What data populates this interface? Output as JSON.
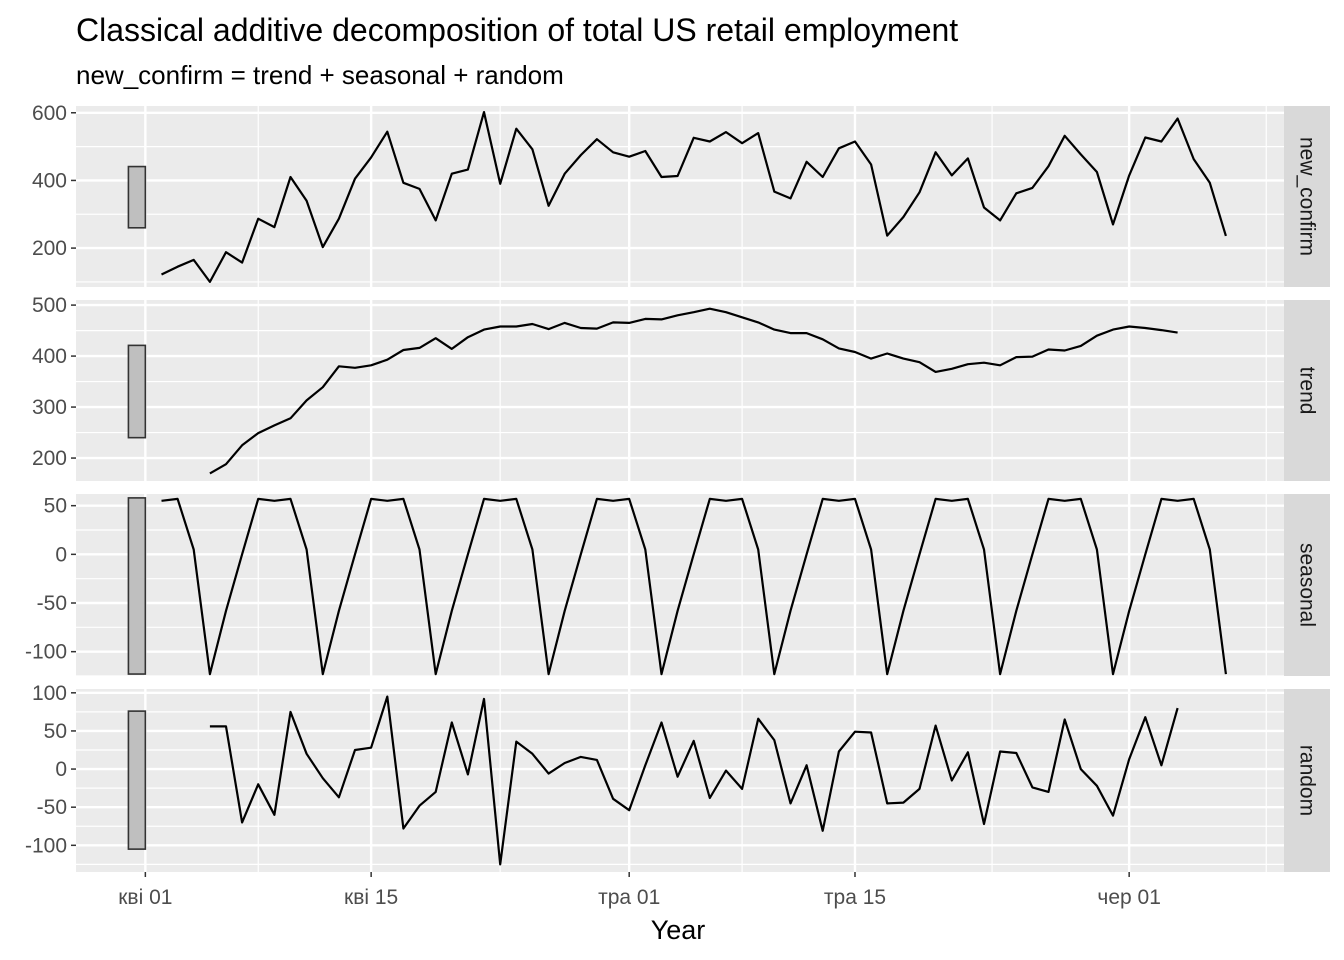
{
  "chart_data": {
    "type": "line",
    "title": "Classical additive decomposition of total US retail employment",
    "subtitle": "new_confirm = trend + seasonal + random",
    "xlabel": "Year",
    "x_ticks": [
      {
        "label": "кві 01",
        "day": 0
      },
      {
        "label": "кві 15",
        "day": 14
      },
      {
        "label": "тра 01",
        "day": 30
      },
      {
        "label": "тра 15",
        "day": 44
      },
      {
        "label": "чер 01",
        "day": 61
      }
    ],
    "x_start_label": "кві 01",
    "x_range": [
      -4.3,
      70.6
    ],
    "panels": [
      {
        "name": "new_confirm",
        "ylim": [
          85,
          620
        ],
        "y_ticks": [
          200,
          400,
          600
        ],
        "scale_bar": [
          260,
          441
        ],
        "values": [
          122,
          145,
          165,
          100,
          188,
          157,
          287,
          262,
          410,
          340,
          203,
          287,
          405,
          468,
          544,
          393,
          375,
          282,
          420,
          432,
          602,
          390,
          553,
          492,
          325,
          420,
          475,
          522,
          483,
          470,
          487,
          410,
          413,
          526,
          515,
          543,
          510,
          540,
          367,
          347,
          455,
          410,
          495,
          515,
          447,
          237,
          292,
          365,
          483,
          415,
          465,
          320,
          282,
          362,
          378,
          442,
          532,
          477,
          425,
          270,
          415,
          527,
          515,
          583,
          463,
          393,
          236
        ]
      },
      {
        "name": "trend",
        "ylim": [
          155,
          510
        ],
        "y_ticks": [
          200,
          300,
          400,
          500
        ],
        "scale_bar": [
          240,
          421
        ],
        "values": [
          null,
          null,
          null,
          170,
          188,
          225,
          249,
          264,
          278,
          313,
          339,
          380,
          377,
          382,
          393,
          412,
          416,
          435,
          414,
          437,
          452,
          458,
          458,
          463,
          453,
          465,
          455,
          454,
          466,
          465,
          473,
          472,
          480,
          486,
          493,
          486,
          476,
          466,
          452,
          445,
          445,
          433,
          415,
          408,
          395,
          405,
          395,
          388,
          369,
          375,
          384,
          387,
          382,
          398,
          399,
          413,
          411,
          420,
          440,
          452,
          458,
          455,
          451,
          446,
          null,
          null,
          null
        ]
      },
      {
        "name": "seasonal",
        "ylim": [
          -125,
          62
        ],
        "y_ticks": [
          50,
          0,
          -50,
          -100
        ],
        "y_tick_labels": [
          "50",
          "0",
          "-50",
          "-100"
        ],
        "scale_bar": [
          -123,
          58
        ],
        "values": [
          55,
          57,
          5,
          -123,
          -58,
          0,
          57,
          55,
          57,
          5,
          -123,
          -58,
          0,
          57,
          55,
          57,
          5,
          -123,
          -58,
          0,
          57,
          55,
          57,
          5,
          -123,
          -58,
          0,
          57,
          55,
          57,
          5,
          -123,
          -58,
          0,
          57,
          55,
          57,
          5,
          -123,
          -58,
          0,
          57,
          55,
          57,
          5,
          -123,
          -58,
          0,
          57,
          55,
          57,
          5,
          -123,
          -58,
          0,
          57,
          55,
          57,
          5,
          -123,
          -58,
          0,
          57,
          55,
          57,
          5,
          -123
        ]
      },
      {
        "name": "random",
        "ylim": [
          -135,
          105
        ],
        "y_ticks": [
          100,
          50,
          0,
          -50,
          -100
        ],
        "y_tick_labels": [
          "100",
          "50",
          "0",
          "-50",
          "-100"
        ],
        "scale_bar": [
          -105,
          76
        ],
        "values": [
          null,
          null,
          null,
          56,
          56,
          -70,
          -20,
          -60,
          75,
          20,
          -12,
          -37,
          25,
          28,
          95,
          -78,
          -48,
          -30,
          61,
          -7,
          92,
          -125,
          36,
          20,
          -6,
          8,
          16,
          12,
          -39,
          -54,
          5,
          61,
          -10,
          37,
          -38,
          -2,
          -26,
          66,
          38,
          -45,
          5,
          -81,
          23,
          49,
          48,
          -45,
          -44,
          -26,
          57,
          -15,
          22,
          -72,
          23,
          21,
          -24,
          -30,
          65,
          0,
          -22,
          -61,
          13,
          68,
          5,
          80,
          null,
          null,
          null
        ]
      }
    ]
  },
  "colors": {
    "panel_bg": "#ebebeb",
    "grid": "#ffffff",
    "line": "#000000",
    "strip_bg": "#d9d9d9",
    "scale_bar_fill": "#bfbfbf"
  }
}
